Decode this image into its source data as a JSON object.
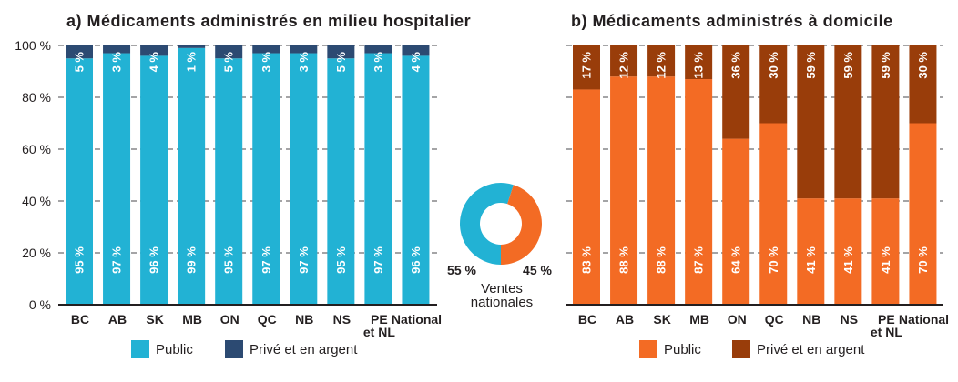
{
  "style": {
    "text_color": "#231f20",
    "grid_color": "#6d6e71",
    "label_color": "#ffffff"
  },
  "chart_data": [
    {
      "id": "a",
      "type": "bar",
      "stacked": true,
      "title": "a) Médicaments administrés en milieu hospitalier",
      "xlabel": "",
      "ylabel": "",
      "categories": [
        "BC",
        "AB",
        "SK",
        "MB",
        "ON",
        "QC",
        "NB",
        "NS",
        "PE et NL",
        "National"
      ],
      "category_label_lines": [
        [
          "BC"
        ],
        [
          "AB"
        ],
        [
          "SK"
        ],
        [
          "MB"
        ],
        [
          "ON"
        ],
        [
          "QC"
        ],
        [
          "NB"
        ],
        [
          "NS"
        ],
        [
          "PE",
          "et NL"
        ],
        [
          "National"
        ]
      ],
      "ylim": [
        0,
        100
      ],
      "yticks": [
        0,
        20,
        40,
        60,
        80,
        100
      ],
      "ytick_labels": [
        "0 %",
        "20 %",
        "40 %",
        "60 %",
        "80 %",
        "100 %"
      ],
      "show_ytick_labels": true,
      "grid": true,
      "legend": "bottom",
      "series": [
        {
          "name": "Public",
          "color": "#22b2d4",
          "values": [
            95,
            97,
            96,
            99,
            95,
            97,
            97,
            95,
            97,
            96
          ],
          "value_labels": [
            "95 %",
            "97 %",
            "96 %",
            "99 %",
            "95 %",
            "97 %",
            "97 %",
            "95 %",
            "97 %",
            "96 %"
          ]
        },
        {
          "name": "Privé et en argent",
          "color": "#2c4a72",
          "values": [
            5,
            3,
            4,
            1,
            5,
            3,
            3,
            5,
            3,
            4
          ],
          "value_labels": [
            "5 %",
            "3 %",
            "4 %",
            "1 %",
            "5 %",
            "3 %",
            "3 %",
            "5 %",
            "3 %",
            "4 %"
          ]
        }
      ]
    },
    {
      "id": "national",
      "type": "pie",
      "donut": true,
      "title": "Ventes nationales",
      "title_lines": [
        "Ventes",
        "nationales"
      ],
      "slices": [
        {
          "value": 55,
          "label": "55 %",
          "color": "#22b2d4"
        },
        {
          "value": 45,
          "label": "45 %",
          "color": "#f36b24"
        }
      ]
    },
    {
      "id": "b",
      "type": "bar",
      "stacked": true,
      "title": "b) Médicaments administrés à domicile",
      "xlabel": "",
      "ylabel": "",
      "categories": [
        "BC",
        "AB",
        "SK",
        "MB",
        "ON",
        "QC",
        "NB",
        "NS",
        "PE et NL",
        "National"
      ],
      "category_label_lines": [
        [
          "BC"
        ],
        [
          "AB"
        ],
        [
          "SK"
        ],
        [
          "MB"
        ],
        [
          "ON"
        ],
        [
          "QC"
        ],
        [
          "NB"
        ],
        [
          "NS"
        ],
        [
          "PE",
          "et NL"
        ],
        [
          "National"
        ]
      ],
      "ylim": [
        0,
        100
      ],
      "yticks": [
        0,
        20,
        40,
        60,
        80,
        100
      ],
      "ytick_labels": [],
      "show_ytick_labels": false,
      "grid": true,
      "legend": "bottom",
      "series": [
        {
          "name": "Public",
          "color": "#f36b24",
          "values": [
            83,
            88,
            88,
            87,
            64,
            70,
            41,
            41,
            41,
            70
          ],
          "value_labels": [
            "83 %",
            "88 %",
            "88 %",
            "87 %",
            "64 %",
            "70 %",
            "41 %",
            "41 %",
            "41 %",
            "70 %"
          ]
        },
        {
          "name": "Privé et en argent",
          "color": "#993d0a",
          "values": [
            17,
            12,
            12,
            13,
            36,
            30,
            59,
            59,
            59,
            30
          ],
          "value_labels": [
            "17 %",
            "12 %",
            "12 %",
            "13 %",
            "36 %",
            "30 %",
            "59 %",
            "59 %",
            "59 %",
            "30 %"
          ]
        }
      ]
    }
  ]
}
